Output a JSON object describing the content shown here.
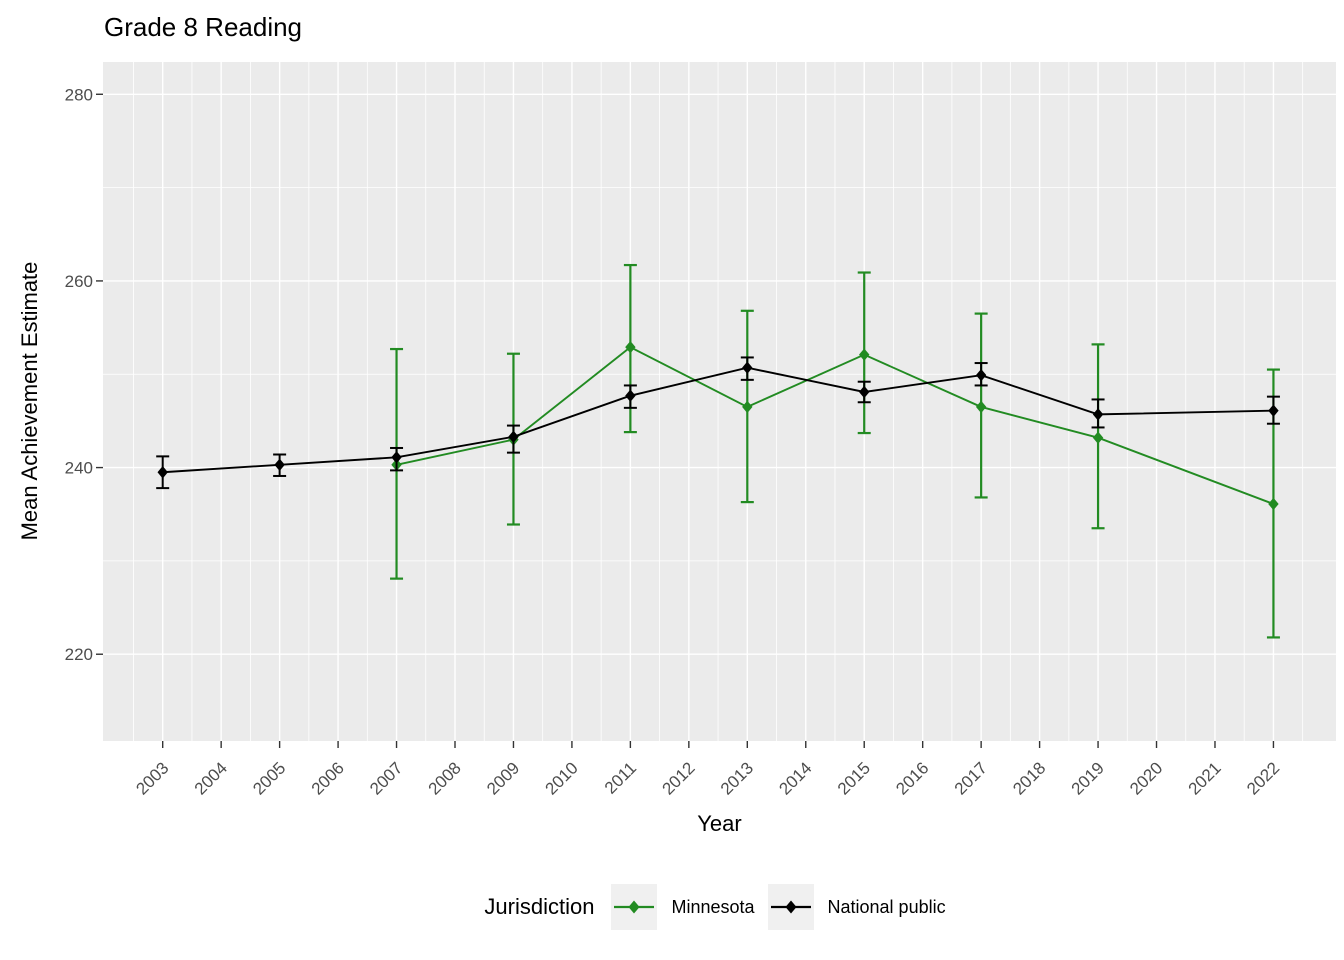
{
  "title": "Grade 8 Reading",
  "axes": {
    "x_title": "Year",
    "y_title": "Mean Achievement Estimate",
    "tick_label_color": "#4D4D4D",
    "tick_mark_color": "#333333"
  },
  "legend": {
    "title": "Jurisdiction",
    "key_background": "#F0F0F0"
  },
  "style": {
    "panel_background": "#EBEBEB",
    "grid_color": "#FFFFFF",
    "background": "#FFFFFF"
  },
  "chart_data": {
    "type": "line",
    "title": "Grade 8 Reading",
    "xlabel": "Year",
    "ylabel": "Mean Achievement Estimate",
    "x_ticks": [
      2003,
      2004,
      2005,
      2006,
      2007,
      2008,
      2009,
      2010,
      2011,
      2012,
      2013,
      2014,
      2015,
      2016,
      2017,
      2018,
      2019,
      2020,
      2021,
      2022
    ],
    "y_ticks": [
      220,
      240,
      260,
      280
    ],
    "y_minor_ticks": [
      230,
      250,
      270
    ],
    "ylim": [
      211,
      283
    ],
    "xlim": [
      2002,
      2023
    ],
    "grid": true,
    "error_bars": true,
    "legend_position": "bottom",
    "legend_title": "Jurisdiction",
    "series": [
      {
        "name": "Minnesota",
        "color": "#228B22",
        "marker": "diamond",
        "x": [
          2007,
          2009,
          2011,
          2013,
          2015,
          2017,
          2019,
          2022
        ],
        "y": [
          240.3,
          243.0,
          252.9,
          246.5,
          252.1,
          246.5,
          243.2,
          236.1
        ],
        "err_low": [
          228.1,
          233.9,
          243.8,
          236.3,
          243.7,
          236.8,
          233.5,
          221.8
        ],
        "err_high": [
          252.7,
          252.2,
          261.7,
          256.8,
          260.9,
          256.5,
          253.2,
          250.5
        ]
      },
      {
        "name": "National public",
        "color": "#000000",
        "marker": "diamond",
        "x": [
          2003,
          2005,
          2007,
          2009,
          2011,
          2013,
          2015,
          2017,
          2019,
          2022
        ],
        "y": [
          239.5,
          240.3,
          241.1,
          243.3,
          247.7,
          250.7,
          248.1,
          249.9,
          245.7,
          246.1
        ],
        "err_low": [
          237.8,
          239.1,
          239.7,
          241.6,
          246.4,
          249.4,
          247.0,
          248.8,
          244.3,
          244.7
        ],
        "err_high": [
          241.2,
          241.4,
          242.1,
          244.5,
          248.8,
          251.8,
          249.2,
          251.2,
          247.3,
          247.6
        ]
      }
    ]
  }
}
